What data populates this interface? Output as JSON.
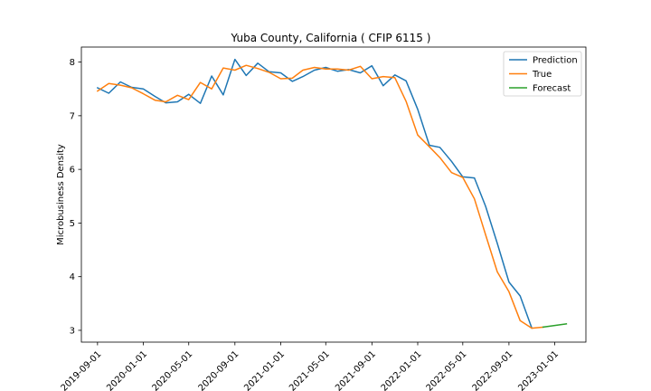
{
  "chart_data": {
    "type": "line",
    "title": "Yuba County, California ( CFIP 6115 )",
    "xlabel": "",
    "ylabel": "Microbusiness Density",
    "x_tick_labels": [
      "2019-09-01",
      "2020-01-01",
      "2020-05-01",
      "2020-09-01",
      "2021-01-01",
      "2021-05-01",
      "2021-09-01",
      "2022-01-01",
      "2022-05-01",
      "2022-09-01",
      "2023-01-01"
    ],
    "y_ticks": [
      3,
      4,
      5,
      6,
      7,
      8
    ],
    "ylim": [
      2.78,
      8.28
    ],
    "xlim": [
      "2019-07-20",
      "2023-03-25"
    ],
    "grid": false,
    "legend_position": "top-right",
    "series": [
      {
        "name": "Prediction",
        "color": "#1f77b4",
        "x": [
          "2019-09-01",
          "2019-10-01",
          "2019-11-01",
          "2019-12-01",
          "2020-01-01",
          "2020-02-01",
          "2020-03-01",
          "2020-04-01",
          "2020-05-01",
          "2020-06-01",
          "2020-07-01",
          "2020-08-01",
          "2020-09-01",
          "2020-10-01",
          "2020-11-01",
          "2020-12-01",
          "2021-01-01",
          "2021-02-01",
          "2021-03-01",
          "2021-04-01",
          "2021-05-01",
          "2021-06-01",
          "2021-07-01",
          "2021-08-01",
          "2021-09-01",
          "2021-10-01",
          "2021-11-01",
          "2021-12-01",
          "2022-01-01",
          "2022-02-01",
          "2022-03-01",
          "2022-04-01",
          "2022-05-01",
          "2022-06-01",
          "2022-07-01",
          "2022-08-01",
          "2022-09-01",
          "2022-10-01",
          "2022-11-01"
        ],
        "values": [
          7.52,
          7.42,
          7.63,
          7.53,
          7.5,
          7.36,
          7.24,
          7.26,
          7.4,
          7.23,
          7.74,
          7.39,
          8.05,
          7.75,
          7.98,
          7.82,
          7.8,
          7.64,
          7.73,
          7.85,
          7.9,
          7.83,
          7.86,
          7.8,
          7.93,
          7.56,
          7.76,
          7.65,
          7.12,
          6.45,
          6.41,
          6.15,
          5.86,
          5.84,
          5.31,
          4.62,
          3.9,
          3.64,
          3.04
        ]
      },
      {
        "name": "True",
        "color": "#ff7f0e",
        "x": [
          "2019-09-01",
          "2019-10-01",
          "2019-11-01",
          "2019-12-01",
          "2020-01-01",
          "2020-02-01",
          "2020-03-01",
          "2020-04-01",
          "2020-05-01",
          "2020-06-01",
          "2020-07-01",
          "2020-08-01",
          "2020-09-01",
          "2020-10-01",
          "2020-11-01",
          "2020-12-01",
          "2021-01-01",
          "2021-02-01",
          "2021-03-01",
          "2021-04-01",
          "2021-05-01",
          "2021-06-01",
          "2021-07-01",
          "2021-08-01",
          "2021-09-01",
          "2021-10-01",
          "2021-11-01",
          "2021-12-01",
          "2022-01-01",
          "2022-02-01",
          "2022-03-01",
          "2022-04-01",
          "2022-05-01",
          "2022-06-01",
          "2022-07-01",
          "2022-08-01",
          "2022-09-01",
          "2022-10-01",
          "2022-11-01",
          "2022-12-01"
        ],
        "values": [
          7.46,
          7.6,
          7.57,
          7.52,
          7.41,
          7.29,
          7.26,
          7.38,
          7.3,
          7.62,
          7.5,
          7.89,
          7.85,
          7.94,
          7.88,
          7.81,
          7.69,
          7.7,
          7.85,
          7.9,
          7.87,
          7.87,
          7.85,
          7.92,
          7.69,
          7.73,
          7.71,
          7.27,
          6.64,
          6.42,
          6.22,
          5.94,
          5.85,
          5.45,
          4.78,
          4.09,
          3.72,
          3.18,
          3.04,
          3.06
        ]
      },
      {
        "name": "Forecast",
        "color": "#2ca02c",
        "x": [
          "2022-12-01",
          "2023-01-01",
          "2023-02-01"
        ],
        "values": [
          3.06,
          3.09,
          3.12
        ]
      }
    ]
  }
}
